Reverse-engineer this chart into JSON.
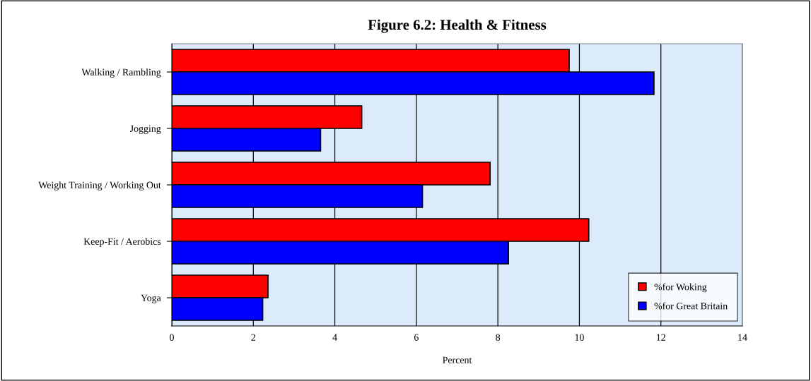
{
  "chart_data": {
    "type": "bar",
    "orientation": "horizontal",
    "title": "Figure 6.2: Health & Fitness",
    "xlabel": "Percent",
    "categories": [
      "Walking / Rambling",
      "Jogging",
      "Weight Training / Working Out",
      "Keep-Fit / Aerobics",
      "Yoga"
    ],
    "series": [
      {
        "name": "%for Woking",
        "color": "#ff0000",
        "values": [
          9.75,
          4.66,
          7.81,
          10.23,
          2.36
        ]
      },
      {
        "name": "%for Great Britain",
        "color": "#0000ff",
        "values": [
          11.83,
          3.65,
          6.15,
          8.26,
          2.23
        ]
      }
    ],
    "xlim": [
      0,
      14
    ],
    "xticks": [
      0,
      2,
      4,
      6,
      8,
      10,
      12,
      14
    ],
    "grid": "x",
    "legend": "bottom right"
  }
}
